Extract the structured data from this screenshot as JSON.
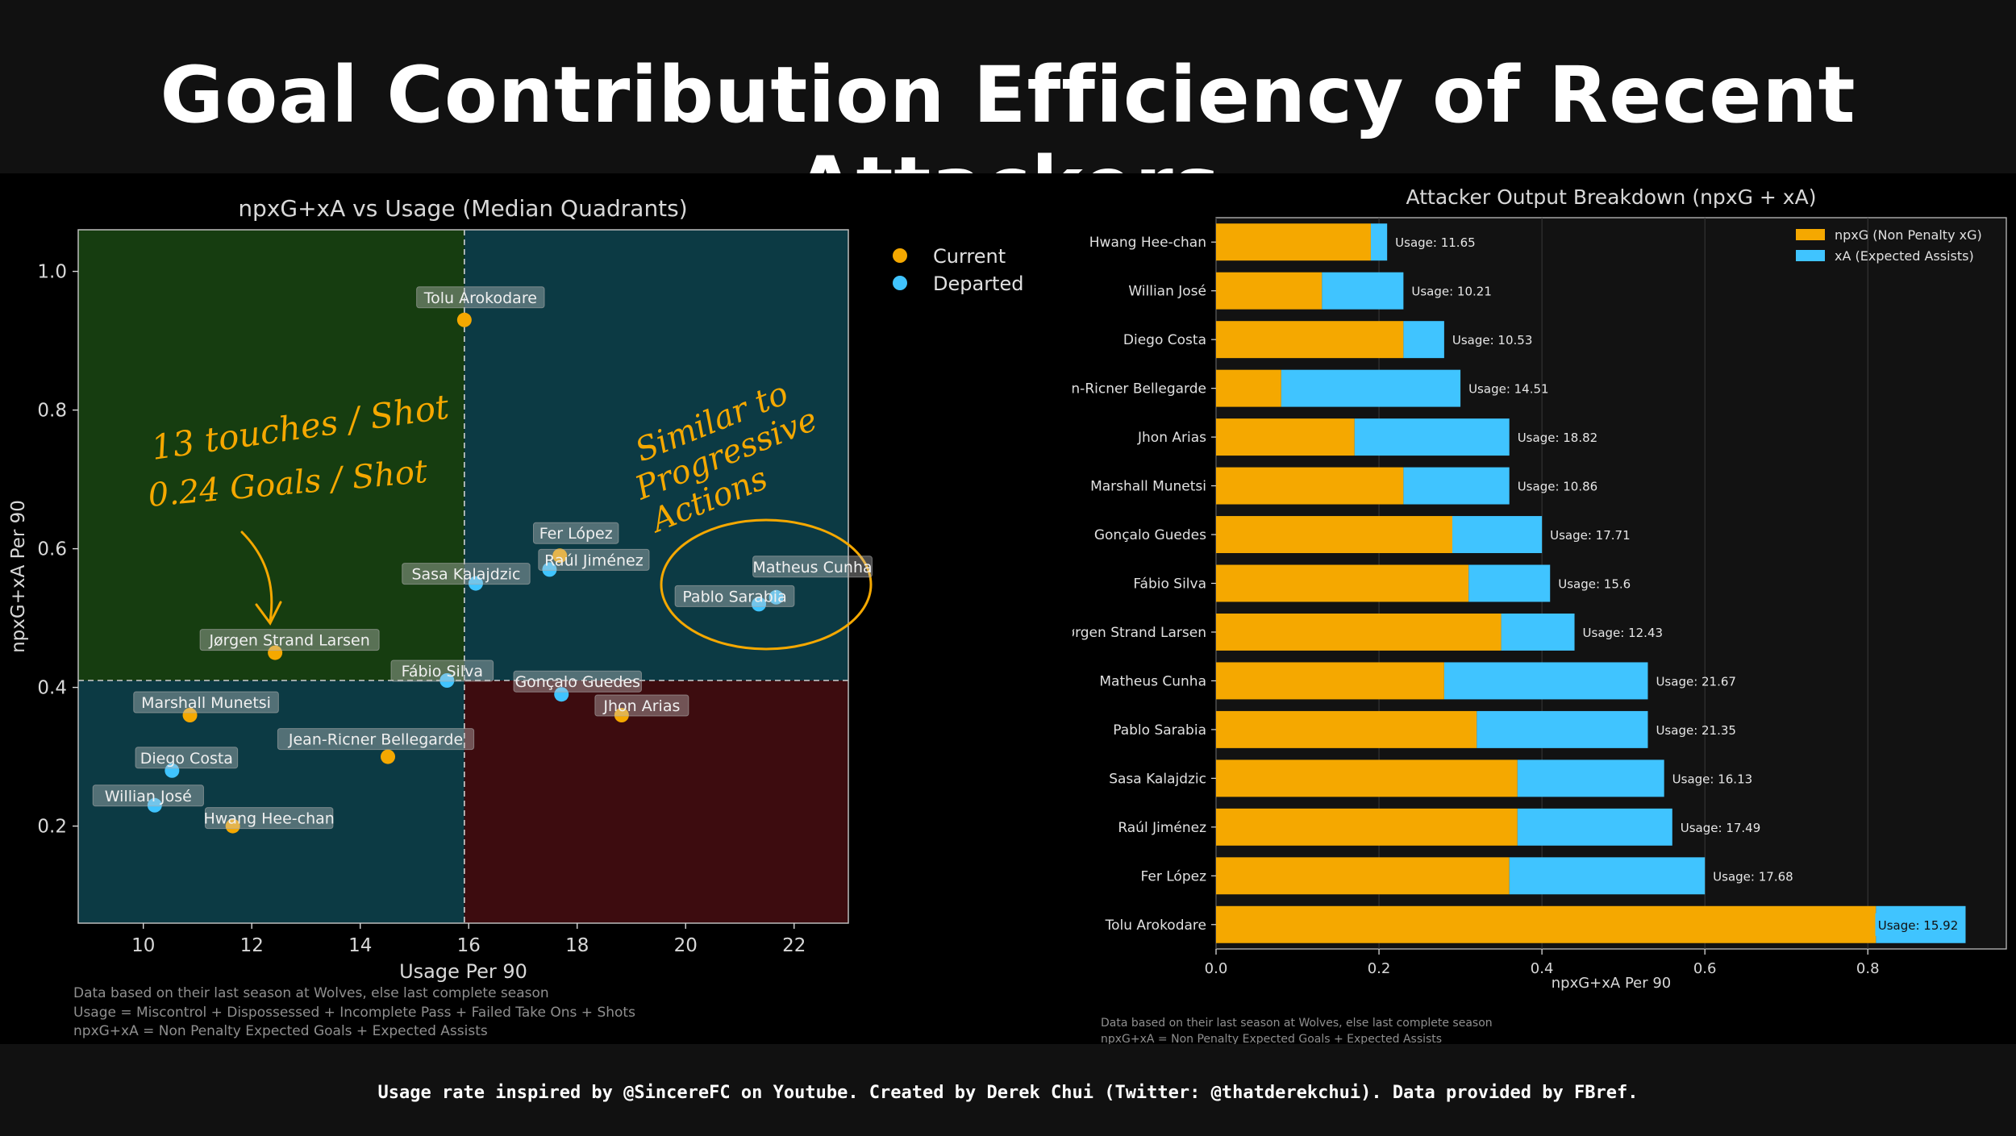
{
  "title": "Goal Contribution Efficiency of Recent Attackers",
  "footer": "Usage rate inspired by @SincereFC on Youtube. Created by Derek Chui (Twitter: @thatderekchui). Data provided by FBref.",
  "colors": {
    "current": "#f5a800",
    "departed": "#40c4ff",
    "npxg": "#f5a800",
    "xa": "#40c4ff",
    "q_top_left": "#163d10",
    "q_teal": "#0c3a44",
    "q_bottom_right": "#3d0c0f"
  },
  "chart_data": [
    {
      "type": "scatter",
      "title": "npxG+xA vs Usage (Median Quadrants)",
      "xlabel": "Usage Per 90",
      "ylabel": "npxG+xA Per 90",
      "xlim": [
        8.8,
        23.0
      ],
      "ylim": [
        0.06,
        1.06
      ],
      "xticks": [
        "10",
        "12",
        "14",
        "16",
        "18",
        "20",
        "22"
      ],
      "yticks": [
        "0.2",
        "0.4",
        "0.6",
        "0.8",
        "1.0"
      ],
      "median_x": 15.92,
      "median_y": 0.41,
      "legend": [
        "Current",
        "Departed"
      ],
      "legend_position": "outside-right",
      "points": [
        {
          "name": "Tolu Arokodare",
          "x": 15.92,
          "y": 0.93,
          "group": "Current"
        },
        {
          "name": "Fer López",
          "x": 17.68,
          "y": 0.59,
          "group": "Current"
        },
        {
          "name": "Raúl Jiménez",
          "x": 17.49,
          "y": 0.57,
          "group": "Departed"
        },
        {
          "name": "Sasa Kalajdzic",
          "x": 16.13,
          "y": 0.55,
          "group": "Departed"
        },
        {
          "name": "Matheus Cunha",
          "x": 21.67,
          "y": 0.53,
          "group": "Departed"
        },
        {
          "name": "Pablo Sarabia",
          "x": 21.35,
          "y": 0.52,
          "group": "Departed"
        },
        {
          "name": "Jørgen Strand Larsen",
          "x": 12.43,
          "y": 0.45,
          "group": "Current"
        },
        {
          "name": "Fábio Silva",
          "x": 15.6,
          "y": 0.41,
          "group": "Departed"
        },
        {
          "name": "Gonçalo Guedes",
          "x": 17.71,
          "y": 0.39,
          "group": "Departed"
        },
        {
          "name": "Jhon Arias",
          "x": 18.82,
          "y": 0.36,
          "group": "Current"
        },
        {
          "name": "Marshall Munetsi",
          "x": 10.86,
          "y": 0.36,
          "group": "Current"
        },
        {
          "name": "Jean-Ricner Bellegarde",
          "x": 14.51,
          "y": 0.3,
          "group": "Current"
        },
        {
          "name": "Diego Costa",
          "x": 10.53,
          "y": 0.28,
          "group": "Departed"
        },
        {
          "name": "Willian José",
          "x": 10.21,
          "y": 0.23,
          "group": "Departed"
        },
        {
          "name": "Hwang Hee-chan",
          "x": 11.65,
          "y": 0.2,
          "group": "Current"
        }
      ],
      "annotations": [
        "13 touches / Shot",
        "0.24 Goals / Shot",
        "Similar to",
        "Progressive",
        "Actions"
      ],
      "notes": [
        "Data based on their last season at Wolves, else last complete season",
        "Usage = Miscontrol + Dispossessed + Incomplete Pass + Failed Take Ons + Shots",
        "npxG+xA = Non Penalty Expected Goals + Expected Assists"
      ]
    },
    {
      "type": "bar",
      "orientation": "horizontal",
      "stacked": true,
      "title": "Attacker Output Breakdown (npxG + xA)",
      "xlabel": "npxG+xA Per 90",
      "xlim": [
        0,
        0.97
      ],
      "xticks": [
        "0.0",
        "0.2",
        "0.4",
        "0.6",
        "0.8"
      ],
      "legend_position": "top-right",
      "categories": [
        "Hwang Hee-chan",
        "Willian José",
        "Diego Costa",
        "Jean-Ricner Bellegarde",
        "Jhon Arias",
        "Marshall Munetsi",
        "Gonçalo Guedes",
        "Fábio Silva",
        "Jørgen Strand Larsen",
        "Matheus Cunha",
        "Pablo Sarabia",
        "Sasa Kalajdzic",
        "Raúl Jiménez",
        "Fer López",
        "Tolu Arokodare"
      ],
      "series": [
        {
          "name": "npxG (Non Penalty xG)",
          "values": [
            0.19,
            0.13,
            0.23,
            0.08,
            0.17,
            0.23,
            0.29,
            0.31,
            0.35,
            0.28,
            0.32,
            0.37,
            0.37,
            0.36,
            0.81
          ]
        },
        {
          "name": "xA (Expected Assists)",
          "values": [
            0.02,
            0.1,
            0.05,
            0.22,
            0.19,
            0.13,
            0.11,
            0.1,
            0.09,
            0.25,
            0.21,
            0.18,
            0.19,
            0.24,
            0.11
          ]
        }
      ],
      "usage_labels": [
        "Usage: 11.65",
        "Usage: 10.21",
        "Usage: 10.53",
        "Usage: 14.51",
        "Usage: 18.82",
        "Usage: 10.86",
        "Usage: 17.71",
        "Usage: 15.6",
        "Usage: 12.43",
        "Usage: 21.67",
        "Usage: 21.35",
        "Usage: 16.13",
        "Usage: 17.49",
        "Usage: 17.68",
        "Usage: 15.92"
      ],
      "notes": [
        "Data based on their last season at Wolves, else last complete season",
        "npxG+xA = Non Penalty Expected Goals + Expected Assists"
      ]
    }
  ]
}
